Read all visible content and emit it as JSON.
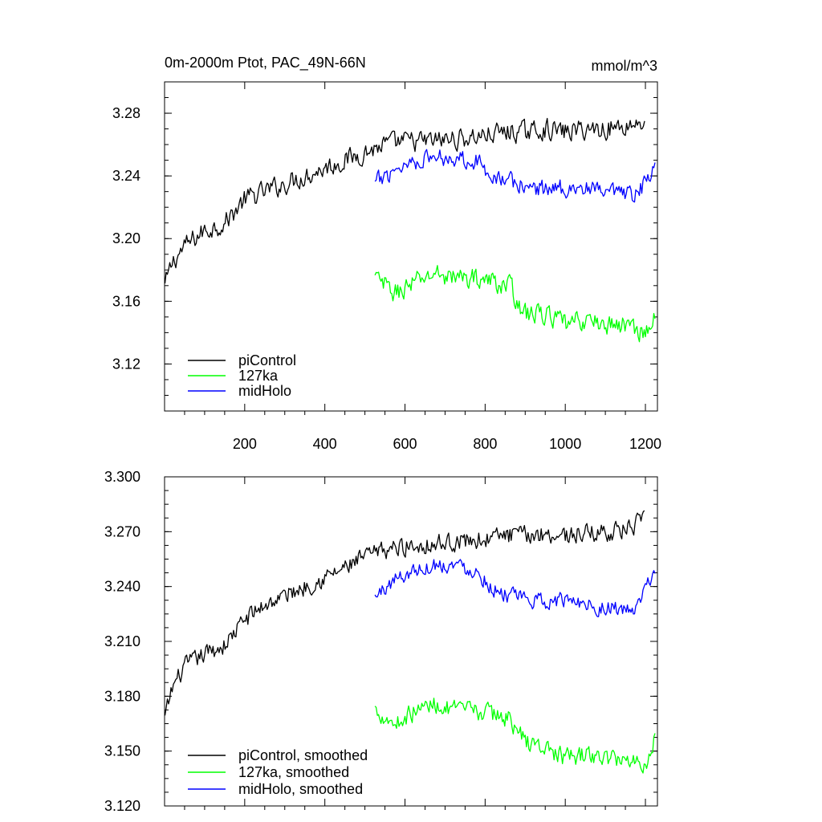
{
  "chart_data": [
    {
      "type": "line",
      "title_left": "0m-2000m Ptot, PAC_49N-66N",
      "title_right": "mmol/m^3",
      "xlim": [
        0,
        1230
      ],
      "ylim": [
        3.09,
        3.3
      ],
      "x_ticks": [
        200,
        400,
        600,
        800,
        1000,
        1200
      ],
      "x_tick_labels": [
        "200",
        "400",
        "600",
        "800",
        "1000",
        "1200"
      ],
      "y_ticks": [
        3.12,
        3.16,
        3.2,
        3.24,
        3.28
      ],
      "y_tick_labels": [
        "3.12",
        "3.16",
        "3.20",
        "3.24",
        "3.28"
      ],
      "legend_position": "bottom-left",
      "series": [
        {
          "name": "piControl",
          "color": "#000000",
          "x_start": 1,
          "x_end": 1200,
          "anchors": [
            [
              1,
              3.17
            ],
            [
              20,
              3.185
            ],
            [
              50,
              3.195
            ],
            [
              100,
              3.205
            ],
            [
              150,
              3.21
            ],
            [
              200,
              3.225
            ],
            [
              250,
              3.23
            ],
            [
              300,
              3.235
            ],
            [
              350,
              3.24
            ],
            [
              400,
              3.245
            ],
            [
              450,
              3.25
            ],
            [
              500,
              3.255
            ],
            [
              550,
              3.26
            ],
            [
              600,
              3.262
            ],
            [
              650,
              3.262
            ],
            [
              700,
              3.263
            ],
            [
              750,
              3.264
            ],
            [
              800,
              3.266
            ],
            [
              850,
              3.268
            ],
            [
              900,
              3.268
            ],
            [
              950,
              3.27
            ],
            [
              1000,
              3.268
            ],
            [
              1050,
              3.27
            ],
            [
              1100,
              3.27
            ],
            [
              1150,
              3.272
            ],
            [
              1200,
              3.275
            ]
          ],
          "noise": 0.009
        },
        {
          "name": "127ka",
          "color": "#00ff00",
          "x_start": 525,
          "x_end": 1225,
          "anchors": [
            [
              525,
              3.175
            ],
            [
              575,
              3.165
            ],
            [
              625,
              3.172
            ],
            [
              675,
              3.178
            ],
            [
              725,
              3.175
            ],
            [
              775,
              3.175
            ],
            [
              825,
              3.172
            ],
            [
              860,
              3.17
            ],
            [
              900,
              3.152
            ],
            [
              950,
              3.152
            ],
            [
              1000,
              3.145
            ],
            [
              1050,
              3.148
            ],
            [
              1100,
              3.145
            ],
            [
              1150,
              3.145
            ],
            [
              1200,
              3.14
            ],
            [
              1225,
              3.15
            ]
          ],
          "noise": 0.009
        },
        {
          "name": "midHolo",
          "color": "#0000ff",
          "x_start": 525,
          "x_end": 1225,
          "anchors": [
            [
              525,
              3.235
            ],
            [
              575,
              3.245
            ],
            [
              625,
              3.25
            ],
            [
              675,
              3.252
            ],
            [
              725,
              3.252
            ],
            [
              775,
              3.25
            ],
            [
              825,
              3.24
            ],
            [
              875,
              3.235
            ],
            [
              925,
              3.232
            ],
            [
              975,
              3.232
            ],
            [
              1025,
              3.233
            ],
            [
              1075,
              3.23
            ],
            [
              1125,
              3.228
            ],
            [
              1175,
              3.227
            ],
            [
              1225,
              3.245
            ]
          ],
          "noise": 0.008
        }
      ],
      "legend": [
        "piControl",
        "127ka",
        "midHolo"
      ]
    },
    {
      "type": "line",
      "xlim": [
        0,
        1230
      ],
      "ylim": [
        3.12,
        3.3
      ],
      "x_ticks": [
        200,
        400,
        600,
        800,
        1000,
        1200
      ],
      "y_ticks": [
        3.12,
        3.15,
        3.18,
        3.21,
        3.24,
        3.27,
        3.3
      ],
      "y_tick_labels": [
        "3.120",
        "3.150",
        "3.180",
        "3.210",
        "3.240",
        "3.270",
        "3.300"
      ],
      "legend_position": "bottom-left",
      "series": [
        {
          "name": "piControl, smoothed",
          "color": "#000000",
          "x_start": 1,
          "x_end": 1200,
          "anchors": [
            [
              1,
              3.168
            ],
            [
              20,
              3.185
            ],
            [
              50,
              3.196
            ],
            [
              100,
              3.203
            ],
            [
              150,
              3.208
            ],
            [
              200,
              3.222
            ],
            [
              250,
              3.23
            ],
            [
              300,
              3.235
            ],
            [
              350,
              3.24
            ],
            [
              400,
              3.245
            ],
            [
              450,
              3.25
            ],
            [
              500,
              3.256
            ],
            [
              550,
              3.26
            ],
            [
              600,
              3.262
            ],
            [
              650,
              3.263
            ],
            [
              700,
              3.264
            ],
            [
              750,
              3.265
            ],
            [
              800,
              3.266
            ],
            [
              850,
              3.268
            ],
            [
              900,
              3.268
            ],
            [
              950,
              3.269
            ],
            [
              1000,
              3.268
            ],
            [
              1050,
              3.269
            ],
            [
              1100,
              3.27
            ],
            [
              1150,
              3.271
            ],
            [
              1200,
              3.276
            ]
          ],
          "noise": 0.007
        },
        {
          "name": "127ka, smoothed",
          "color": "#00ff00",
          "x_start": 525,
          "x_end": 1225,
          "anchors": [
            [
              525,
              3.173
            ],
            [
              575,
              3.165
            ],
            [
              625,
              3.172
            ],
            [
              675,
              3.176
            ],
            [
              725,
              3.172
            ],
            [
              775,
              3.172
            ],
            [
              825,
              3.17
            ],
            [
              860,
              3.168
            ],
            [
              900,
              3.155
            ],
            [
              950,
              3.152
            ],
            [
              1000,
              3.146
            ],
            [
              1050,
              3.148
            ],
            [
              1100,
              3.146
            ],
            [
              1150,
              3.146
            ],
            [
              1200,
              3.143
            ],
            [
              1225,
              3.158
            ]
          ],
          "noise": 0.007
        },
        {
          "name": "midHolo, smoothed",
          "color": "#0000ff",
          "x_start": 525,
          "x_end": 1225,
          "anchors": [
            [
              525,
              3.234
            ],
            [
              575,
              3.244
            ],
            [
              625,
              3.249
            ],
            [
              675,
              3.252
            ],
            [
              725,
              3.252
            ],
            [
              775,
              3.249
            ],
            [
              825,
              3.238
            ],
            [
              875,
              3.234
            ],
            [
              925,
              3.232
            ],
            [
              975,
              3.232
            ],
            [
              1025,
              3.233
            ],
            [
              1075,
              3.229
            ],
            [
              1125,
              3.228
            ],
            [
              1175,
              3.226
            ],
            [
              1225,
              3.25
            ]
          ],
          "noise": 0.006
        }
      ],
      "legend": [
        "piControl, smoothed",
        "127ka, smoothed",
        "midHolo, smoothed"
      ]
    }
  ]
}
